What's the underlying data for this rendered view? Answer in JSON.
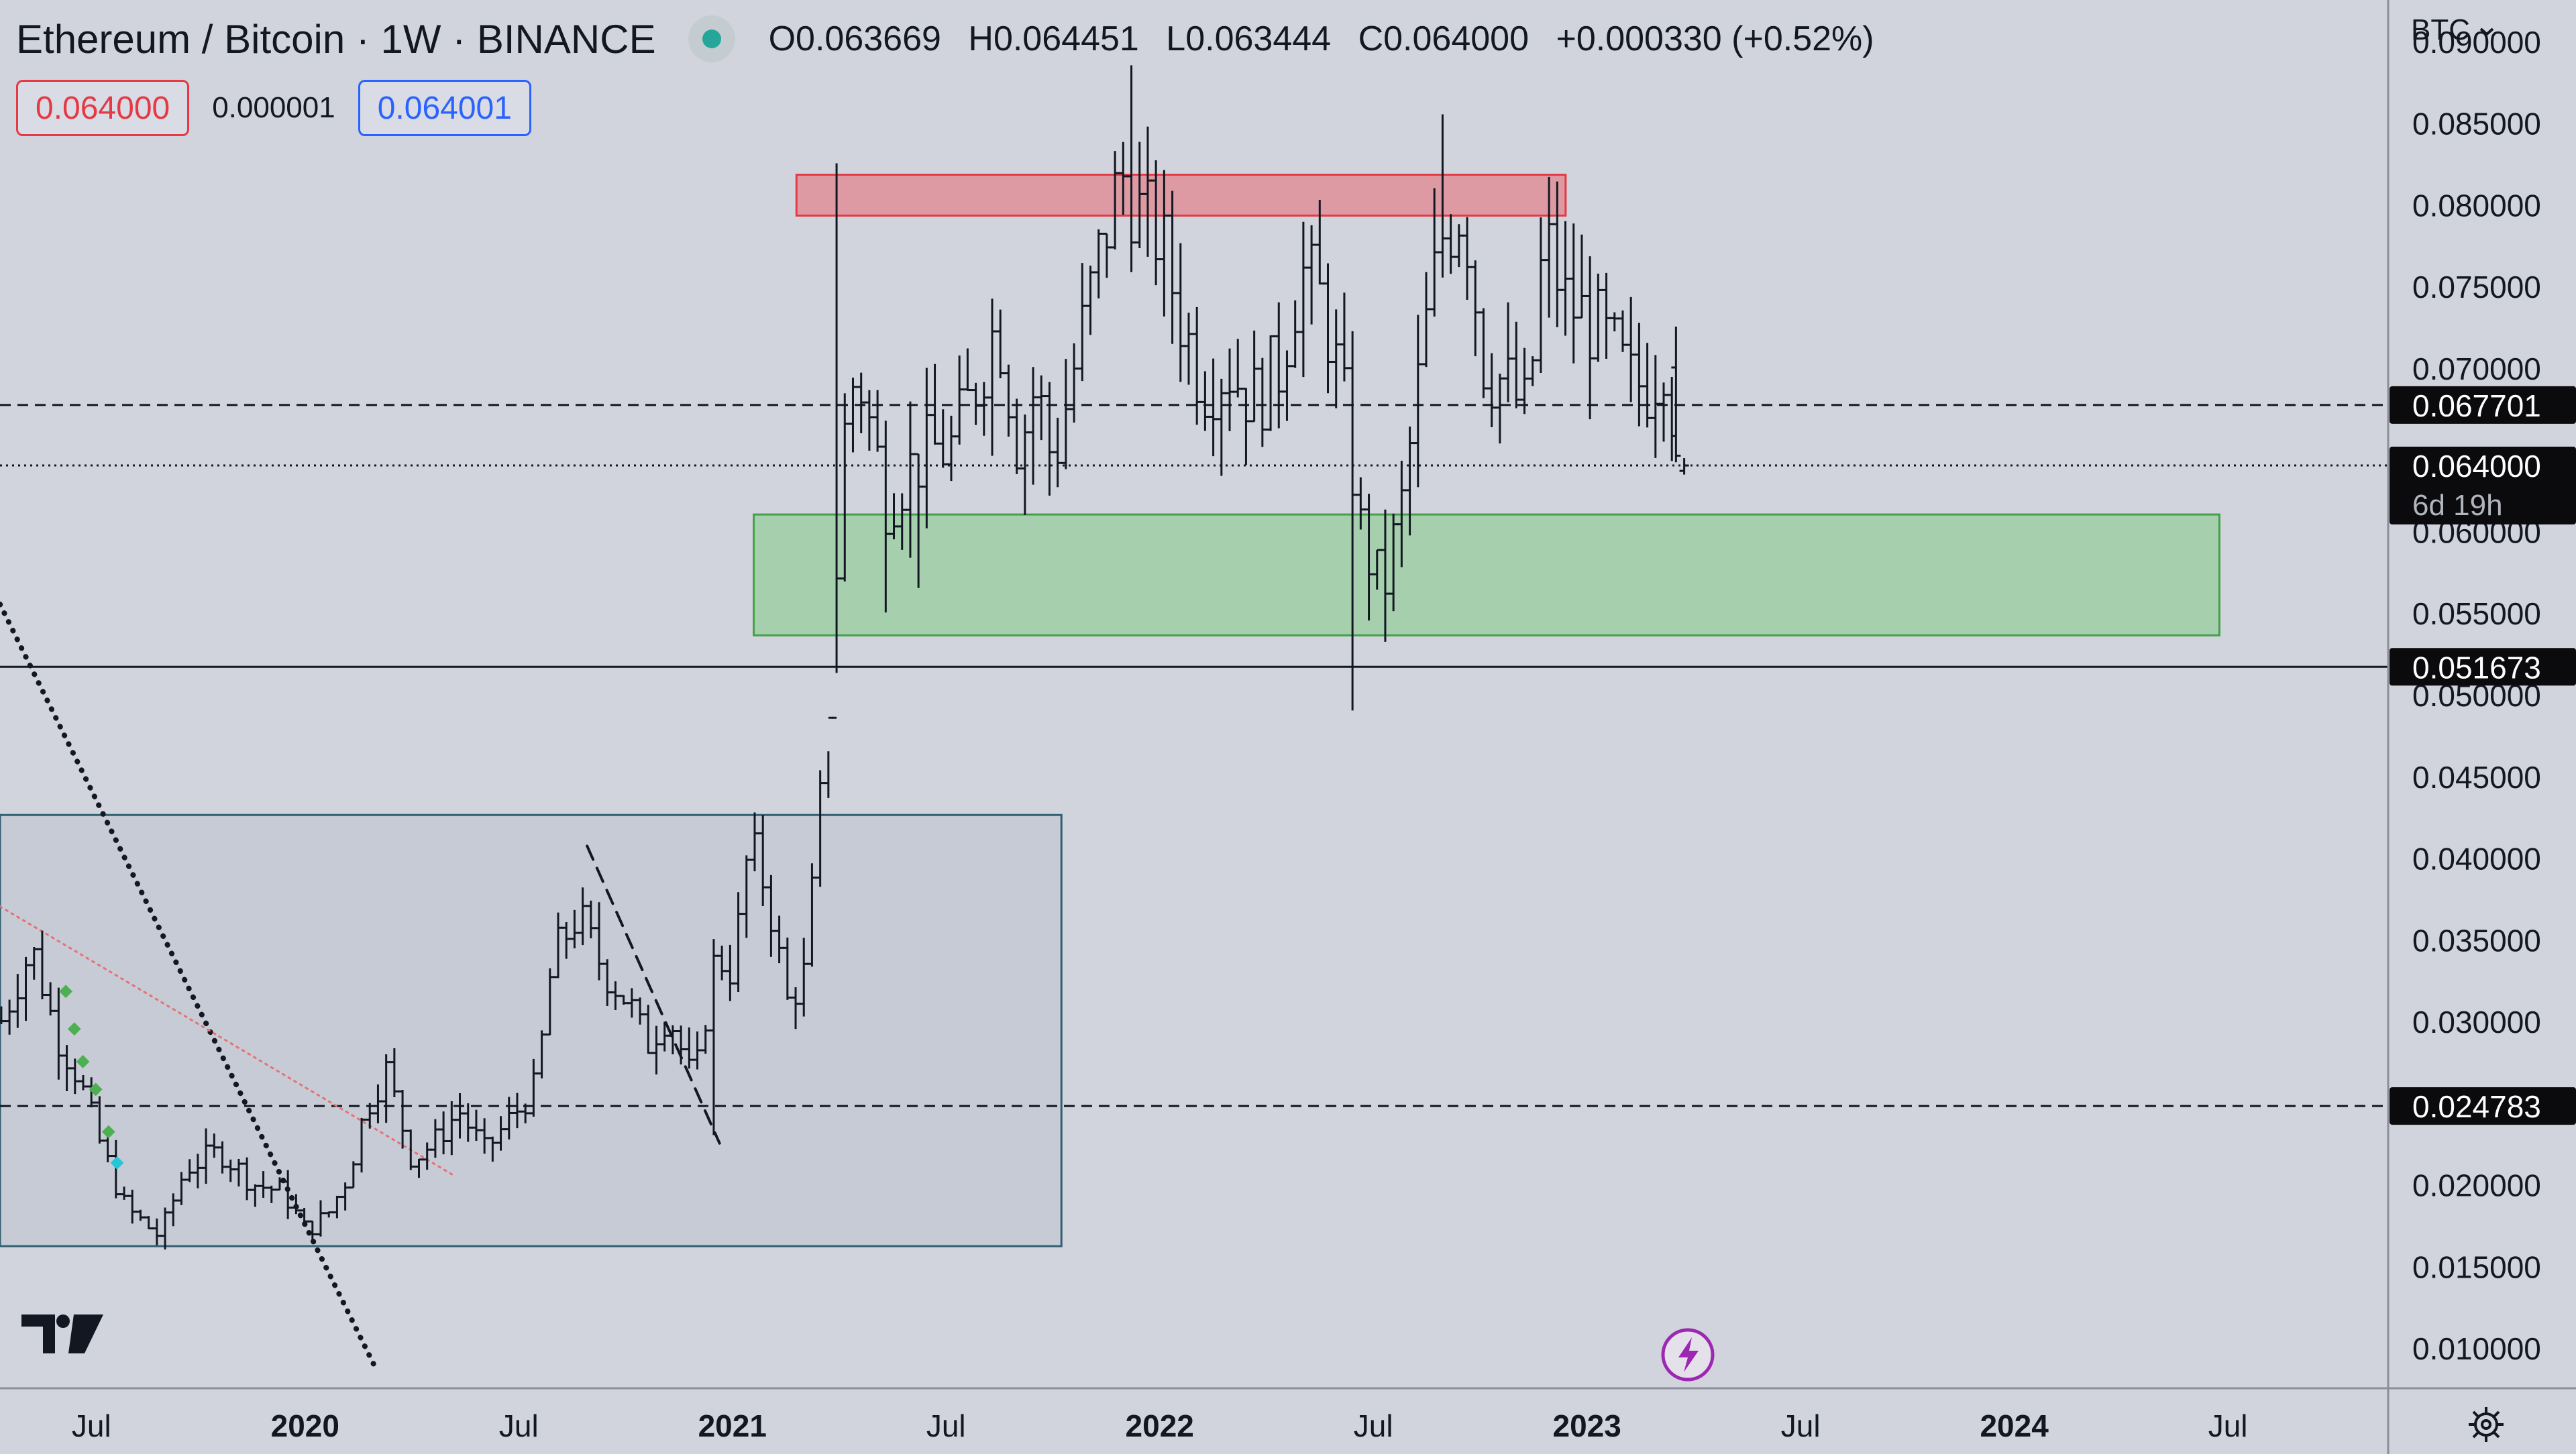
{
  "header": {
    "symbol": "Ethereum / Bitcoin · 1W · BINANCE",
    "open": "O0.063669",
    "high": "H0.064451",
    "low": "L0.063444",
    "close": "C0.064000",
    "change": "+0.000330 (+0.52%)"
  },
  "trade": {
    "sell_price": "0.064000",
    "spread": "0.000001",
    "buy_price": "0.064001"
  },
  "currency_label": "BTC",
  "icons": {
    "logo": "tradingview-logo-icon",
    "bolt": "lightning-bolt-icon",
    "settings": "gear-icon",
    "chevron": "chevron-down-icon"
  },
  "colors": {
    "background": "#d1d4dc",
    "resistance_zone": "#e08f98",
    "support_zone": "#9fcfa5",
    "range_box": "#c3c8d3",
    "sell": "#e53945",
    "buy": "#2962ff",
    "positive": "#26a69a"
  },
  "chart_data": {
    "type": "ohlc_bar",
    "title": "Ethereum / Bitcoin · 1W · BINANCE",
    "ylim": [
      0.0075,
      0.0925
    ],
    "yticks": [
      "0.090000",
      "0.085000",
      "0.080000",
      "0.075000",
      "0.070000",
      "0.060000",
      "0.055000",
      "0.050000",
      "0.045000",
      "0.040000",
      "0.035000",
      "0.030000",
      "0.020000",
      "0.015000",
      "0.010000"
    ],
    "xlim": [
      2019.286,
      2024.875
    ],
    "xticks": [
      {
        "label": "Jul",
        "t": 2019.5,
        "bold": false
      },
      {
        "label": "2020",
        "t": 2020.0,
        "bold": true
      },
      {
        "label": "Jul",
        "t": 2020.5,
        "bold": false
      },
      {
        "label": "2021",
        "t": 2021.0,
        "bold": true
      },
      {
        "label": "Jul",
        "t": 2021.5,
        "bold": false
      },
      {
        "label": "2022",
        "t": 2022.0,
        "bold": true
      },
      {
        "label": "Jul",
        "t": 2022.5,
        "bold": false
      },
      {
        "label": "2023",
        "t": 2023.0,
        "bold": true
      },
      {
        "label": "Jul",
        "t": 2023.5,
        "bold": false
      },
      {
        "label": "2024",
        "t": 2024.0,
        "bold": true
      },
      {
        "label": "Jul",
        "t": 2024.5,
        "bold": false
      }
    ],
    "price_labels": [
      {
        "value": 0.067701,
        "text": "0.067701",
        "line": "dashed"
      },
      {
        "value": 0.064,
        "text": "0.064000",
        "sub": "6d 19h",
        "line": "dotted"
      },
      {
        "value": 0.051673,
        "text": "0.051673",
        "line": "solid"
      },
      {
        "value": 0.024783,
        "text": "0.024783",
        "line": "dashed"
      }
    ],
    "zones": [
      {
        "name": "resistance-zone",
        "t0": 2021.15,
        "t1": 2022.95,
        "y0": 0.0793,
        "y1": 0.0818
      },
      {
        "name": "support-zone",
        "t0": 2021.05,
        "t1": 2024.48,
        "y0": 0.0536,
        "y1": 0.061
      },
      {
        "name": "range-box",
        "t0": 2019.286,
        "t1": 2021.77,
        "y0": 0.0162,
        "y1": 0.0426
      }
    ],
    "trendlines": [
      {
        "name": "dotted-downtrend",
        "style": "dotted",
        "points": [
          [
            2019.286,
            0.0555
          ],
          [
            2020.16,
            0.009
          ]
        ]
      },
      {
        "name": "dashed-downtrend",
        "style": "dashed",
        "points": [
          [
            2020.66,
            0.0407
          ],
          [
            2020.97,
            0.0225
          ]
        ]
      },
      {
        "name": "red-dotted-trend",
        "style": "dotted-red",
        "points": [
          [
            2019.286,
            0.037
          ],
          [
            2020.35,
            0.0205
          ]
        ]
      }
    ],
    "markers": [
      [
        2019.44,
        0.0318
      ],
      [
        2019.46,
        0.0295
      ],
      [
        2019.48,
        0.0275
      ],
      [
        2019.51,
        0.0258
      ],
      [
        2019.54,
        0.0232
      ],
      [
        2019.56,
        0.0213
      ]
    ],
    "anchors": [
      [
        2019.29,
        0.03
      ],
      [
        2019.36,
        0.0345
      ],
      [
        2019.42,
        0.029
      ],
      [
        2019.47,
        0.0265
      ],
      [
        2019.52,
        0.0225
      ],
      [
        2019.58,
        0.0185
      ],
      [
        2019.66,
        0.0168
      ],
      [
        2019.72,
        0.021
      ],
      [
        2019.8,
        0.022
      ],
      [
        2019.88,
        0.02
      ],
      [
        2019.95,
        0.0195
      ],
      [
        2020.0,
        0.0172
      ],
      [
        2020.05,
        0.018
      ],
      [
        2020.1,
        0.0205
      ],
      [
        2020.14,
        0.0245
      ],
      [
        2020.19,
        0.027
      ],
      [
        2020.25,
        0.0215
      ],
      [
        2020.3,
        0.0225
      ],
      [
        2020.36,
        0.0245
      ],
      [
        2020.42,
        0.022
      ],
      [
        2020.48,
        0.024
      ],
      [
        2020.54,
        0.026
      ],
      [
        2020.58,
        0.034
      ],
      [
        2020.64,
        0.0365
      ],
      [
        2020.7,
        0.033
      ],
      [
        2020.76,
        0.031
      ],
      [
        2020.8,
        0.0285
      ],
      [
        2020.85,
        0.0305
      ],
      [
        2020.91,
        0.026
      ],
      [
        2020.96,
        0.034
      ],
      [
        2021.0,
        0.033
      ],
      [
        2021.04,
        0.041
      ],
      [
        2021.08,
        0.038
      ],
      [
        2021.13,
        0.031
      ],
      [
        2021.17,
        0.033
      ],
      [
        2021.22,
        0.0475
      ],
      [
        2021.27,
        0.069
      ],
      [
        2021.3,
        0.069
      ],
      [
        2021.36,
        0.062
      ],
      [
        2021.42,
        0.064
      ],
      [
        2021.47,
        0.065
      ],
      [
        2021.51,
        0.065
      ],
      [
        2021.57,
        0.069
      ],
      [
        2021.62,
        0.073
      ],
      [
        2021.67,
        0.065
      ],
      [
        2021.71,
        0.069
      ],
      [
        2021.75,
        0.064
      ],
      [
        2021.8,
        0.07
      ],
      [
        2021.85,
        0.076
      ],
      [
        2021.91,
        0.082
      ],
      [
        2021.96,
        0.079
      ],
      [
        2022.0,
        0.078
      ],
      [
        2022.05,
        0.073
      ],
      [
        2022.1,
        0.069
      ],
      [
        2022.16,
        0.07
      ],
      [
        2022.22,
        0.068
      ],
      [
        2022.28,
        0.07
      ],
      [
        2022.33,
        0.076
      ],
      [
        2022.38,
        0.074
      ],
      [
        2022.43,
        0.068
      ],
      [
        2022.47,
        0.06
      ],
      [
        2022.52,
        0.056
      ],
      [
        2022.57,
        0.062
      ],
      [
        2022.62,
        0.072
      ],
      [
        2022.66,
        0.078
      ],
      [
        2022.71,
        0.08
      ],
      [
        2022.76,
        0.07
      ],
      [
        2022.81,
        0.069
      ],
      [
        2022.86,
        0.067
      ],
      [
        2022.9,
        0.078
      ],
      [
        2022.95,
        0.074
      ],
      [
        2023.0,
        0.073
      ],
      [
        2023.06,
        0.071
      ],
      [
        2023.1,
        0.069
      ],
      [
        2023.15,
        0.069
      ],
      [
        2023.18,
        0.071
      ],
      [
        2023.22,
        0.064
      ]
    ],
    "last_bars": [
      {
        "t": 2023.2083,
        "o": 0.07,
        "h": 0.0725,
        "l": 0.0642,
        "c": 0.0646
      },
      {
        "t": 2023.2275,
        "o": 0.063669,
        "h": 0.064451,
        "l": 0.063444,
        "c": 0.064
      }
    ],
    "spikes": [
      {
        "t": 2021.245,
        "h": 0.0825,
        "l": 0.0513
      },
      {
        "t": 2021.93,
        "h": 0.0885
      },
      {
        "t": 2022.445,
        "l": 0.049
      },
      {
        "t": 2022.67,
        "h": 0.0855
      },
      {
        "t": 2021.35,
        "l": 0.055
      },
      {
        "t": 2021.44,
        "l": 0.0565
      },
      {
        "t": 2020.95,
        "l": 0.023
      },
      {
        "t": 2019.67,
        "l": 0.016
      },
      {
        "t": 2021.22,
        "h": 0.0465
      }
    ]
  }
}
